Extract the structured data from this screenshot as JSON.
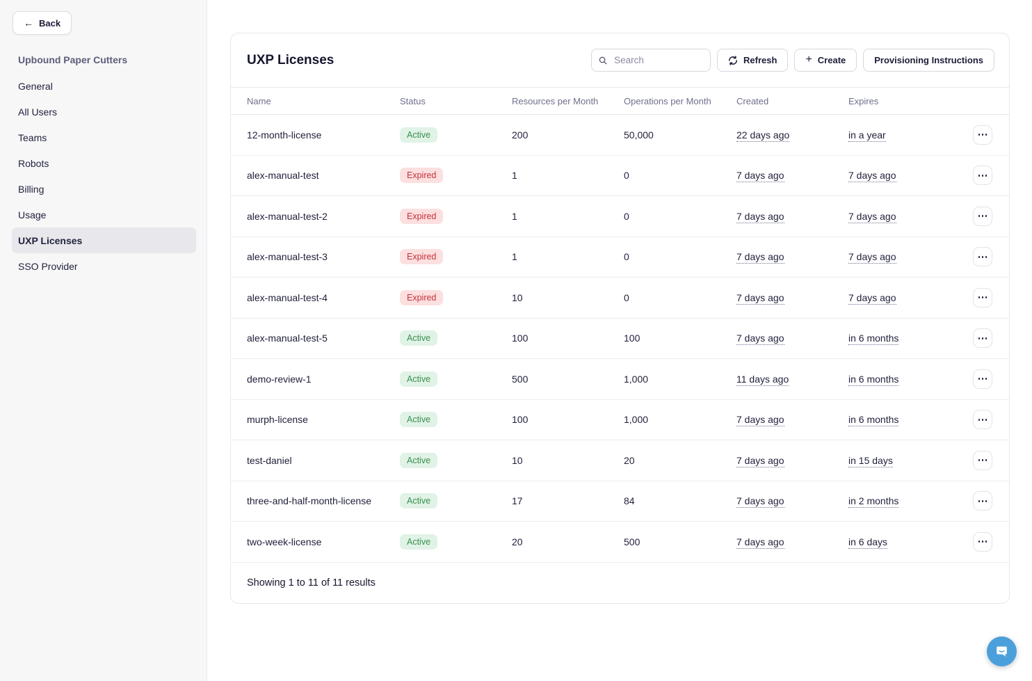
{
  "sidebar": {
    "back_label": "Back",
    "org_name": "Upbound Paper Cutters",
    "items": [
      {
        "label": "General",
        "active": false
      },
      {
        "label": "All Users",
        "active": false
      },
      {
        "label": "Teams",
        "active": false
      },
      {
        "label": "Robots",
        "active": false
      },
      {
        "label": "Billing",
        "active": false
      },
      {
        "label": "Usage",
        "active": false
      },
      {
        "label": "UXP Licenses",
        "active": true
      },
      {
        "label": "SSO Provider",
        "active": false
      }
    ]
  },
  "main": {
    "title": "UXP Licenses",
    "search_placeholder": "Search",
    "refresh_label": "Refresh",
    "create_label": "Create",
    "provisioning_label": "Provisioning Instructions",
    "table": {
      "columns": [
        "Name",
        "Status",
        "Resources per Month",
        "Operations per Month",
        "Created",
        "Expires"
      ],
      "rows": [
        {
          "name": "12-month-license",
          "status": "Active",
          "resources": "200",
          "operations": "50,000",
          "created": "22 days ago",
          "expires": "in a year"
        },
        {
          "name": "alex-manual-test",
          "status": "Expired",
          "resources": "1",
          "operations": "0",
          "created": "7 days ago",
          "expires": "7 days ago"
        },
        {
          "name": "alex-manual-test-2",
          "status": "Expired",
          "resources": "1",
          "operations": "0",
          "created": "7 days ago",
          "expires": "7 days ago"
        },
        {
          "name": "alex-manual-test-3",
          "status": "Expired",
          "resources": "1",
          "operations": "0",
          "created": "7 days ago",
          "expires": "7 days ago"
        },
        {
          "name": "alex-manual-test-4",
          "status": "Expired",
          "resources": "10",
          "operations": "0",
          "created": "7 days ago",
          "expires": "7 days ago"
        },
        {
          "name": "alex-manual-test-5",
          "status": "Active",
          "resources": "100",
          "operations": "100",
          "created": "7 days ago",
          "expires": "in 6 months"
        },
        {
          "name": "demo-review-1",
          "status": "Active",
          "resources": "500",
          "operations": "1,000",
          "created": "11 days ago",
          "expires": "in 6 months"
        },
        {
          "name": "murph-license",
          "status": "Active",
          "resources": "100",
          "operations": "1,000",
          "created": "7 days ago",
          "expires": "in 6 months"
        },
        {
          "name": "test-daniel",
          "status": "Active",
          "resources": "10",
          "operations": "20",
          "created": "7 days ago",
          "expires": "in 15 days"
        },
        {
          "name": "three-and-half-month-license",
          "status": "Active",
          "resources": "17",
          "operations": "84",
          "created": "7 days ago",
          "expires": "in 2 months"
        },
        {
          "name": "two-week-license",
          "status": "Active",
          "resources": "20",
          "operations": "500",
          "created": "7 days ago",
          "expires": "in 6 days"
        }
      ],
      "footer": "Showing 1 to 11 of 11 results"
    }
  },
  "colors": {
    "active_bg": "#e1f2e6",
    "active_text": "#38914d",
    "expired_bg": "#fcdfdf",
    "expired_text": "#c5323c",
    "intercom_blue": "#4ba0dc"
  }
}
